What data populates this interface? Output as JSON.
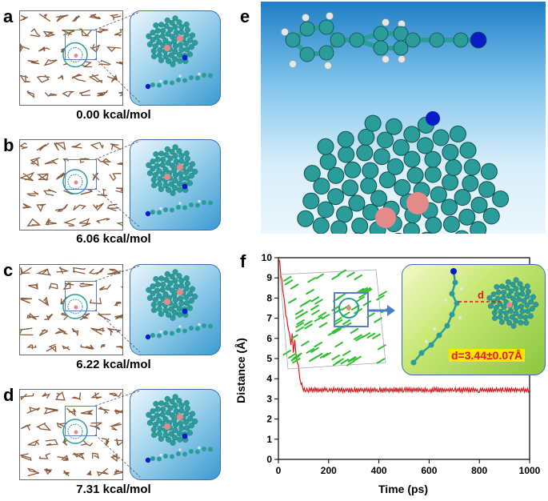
{
  "panels": {
    "a": {
      "label": "a",
      "energy": "0.00 kcal/mol"
    },
    "b": {
      "label": "b",
      "energy": "6.06 kcal/mol"
    },
    "c": {
      "label": "c",
      "energy": "6.22 kcal/mol"
    },
    "d": {
      "label": "d",
      "energy": "7.31 kcal/mol"
    },
    "e": {
      "label": "e"
    },
    "f": {
      "label": "f",
      "distance_label": "d",
      "distance_value": "d=3.44±0.07Å"
    }
  },
  "colors": {
    "carbon": "#2a9d9b",
    "nitrogen": "#0a1cc8",
    "hydrogen": "#e6e6e6",
    "heteroatom": "#e58a8a",
    "crystal": "#8a5a3a",
    "line": "#e0191b",
    "inset_green": "#9bd84a"
  },
  "chart_data": {
    "type": "line",
    "xlabel": "Time (ps)",
    "ylabel": "Distance (Å)",
    "xlim": [
      0,
      1000
    ],
    "ylim": [
      0,
      10
    ],
    "xticks": [
      0,
      200,
      400,
      600,
      800,
      1000
    ],
    "yticks": [
      0,
      1,
      2,
      3,
      4,
      5,
      6,
      7,
      8,
      9,
      10
    ],
    "series": [
      {
        "color": "#e0191b",
        "x": [
          0,
          5,
          10,
          20,
          30,
          40,
          50,
          55,
          60,
          65,
          70,
          75,
          80,
          85,
          90,
          100,
          110,
          120,
          150,
          200,
          300,
          400,
          500,
          600,
          700,
          800,
          900,
          1000
        ],
        "y": [
          10,
          9.9,
          9.2,
          8.2,
          7.2,
          6.5,
          5.8,
          6.3,
          5.4,
          6.0,
          5.3,
          4.9,
          4.7,
          4.1,
          3.8,
          3.5,
          3.45,
          3.44,
          3.43,
          3.45,
          3.44,
          3.43,
          3.45,
          3.44,
          3.44,
          3.43,
          3.45,
          3.44
        ],
        "noise": 0.08
      }
    ]
  }
}
